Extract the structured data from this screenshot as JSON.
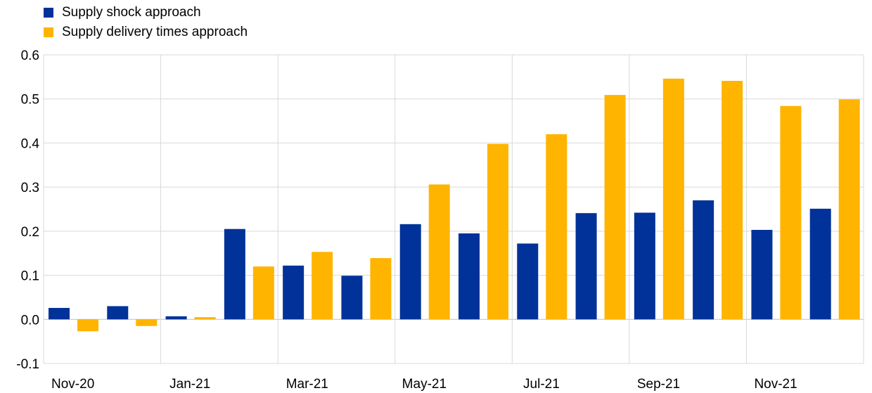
{
  "chart_data": {
    "type": "bar",
    "categories": [
      "Nov-20",
      "Dec-20",
      "Jan-21",
      "Feb-21",
      "Mar-21",
      "Apr-21",
      "May-21",
      "Jun-21",
      "Jul-21",
      "Aug-21",
      "Sep-21",
      "Oct-21",
      "Nov-21",
      "Dec-21"
    ],
    "tick_labels": [
      "Nov-20",
      "Jan-21",
      "Mar-21",
      "May-21",
      "Jul-21",
      "Sep-21",
      "Nov-21"
    ],
    "series": [
      {
        "name": "Supply shock approach",
        "color": "#003299",
        "values": [
          0.026,
          0.03,
          0.007,
          0.205,
          0.122,
          0.099,
          0.216,
          0.195,
          0.172,
          0.241,
          0.242,
          0.27,
          0.203,
          0.251
        ]
      },
      {
        "name": "Supply delivery times approach",
        "color": "#FFB400",
        "values": [
          -0.027,
          -0.015,
          0.005,
          0.12,
          0.153,
          0.139,
          0.306,
          0.398,
          0.42,
          0.509,
          0.546,
          0.541,
          0.484,
          0.499
        ]
      }
    ],
    "y_ticks": [
      "0.6",
      "0.5",
      "0.4",
      "0.3",
      "0.2",
      "0.1",
      "0.0",
      "-0.1"
    ],
    "ylim": [
      -0.1,
      0.6
    ],
    "grid": true,
    "legend_position": "top-left",
    "title": "",
    "xlabel": "",
    "ylabel": ""
  }
}
